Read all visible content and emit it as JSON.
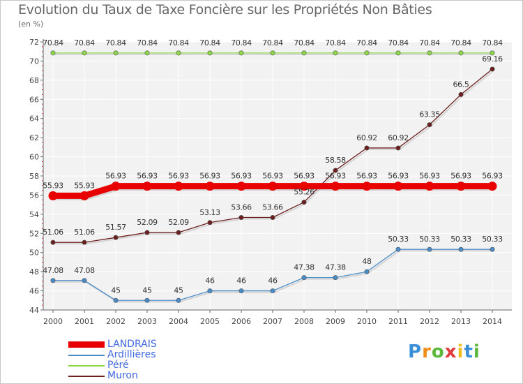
{
  "chart_data": {
    "type": "line",
    "title": "Evolution du Taux de Taxe Foncière sur les Propriétés Non Bâties",
    "ylabel": "(en %)",
    "xlabel": "",
    "ylim": [
      44,
      72
    ],
    "yticks": [
      44,
      46,
      48,
      50,
      52,
      54,
      56,
      58,
      60,
      62,
      64,
      66,
      68,
      70,
      72
    ],
    "x": [
      "2000",
      "2001",
      "2002",
      "2003",
      "2004",
      "2005",
      "2006",
      "2007",
      "2008",
      "2009",
      "2010",
      "2011",
      "2012",
      "2013",
      "2014"
    ],
    "series": [
      {
        "name": "LANDRAIS",
        "color": "#e80000",
        "values": [
          55.93,
          55.93,
          56.93,
          56.93,
          56.93,
          56.93,
          56.93,
          56.93,
          56.93,
          56.93,
          56.93,
          56.93,
          56.93,
          56.93,
          56.93
        ],
        "labels": [
          "55.93",
          "55.93",
          "56.93",
          "56.93",
          "56.93",
          "56.93",
          "56.93",
          "56.93",
          "56.93",
          "56.93",
          "56.93",
          "56.93",
          "56.93",
          "56.93",
          "56.93"
        ]
      },
      {
        "name": "Ardillières",
        "color": "#4a8cc8",
        "values": [
          47.08,
          47.08,
          45,
          45,
          45,
          46,
          46,
          46,
          47.38,
          47.38,
          48,
          50.33,
          50.33,
          50.33,
          50.33
        ],
        "labels": [
          "47.08",
          "47.08",
          "45",
          "45",
          "45",
          "46",
          "46",
          "46",
          "47.38",
          "47.38",
          "48",
          "50.33",
          "50.33",
          "50.33",
          "50.33"
        ]
      },
      {
        "name": "Péré",
        "color": "#8fd84a",
        "values": [
          70.84,
          70.84,
          70.84,
          70.84,
          70.84,
          70.84,
          70.84,
          70.84,
          70.84,
          70.84,
          70.84,
          70.84,
          70.84,
          70.84,
          70.84
        ],
        "labels": [
          "70.84",
          "70.84",
          "70.84",
          "70.84",
          "70.84",
          "70.84",
          "70.84",
          "70.84",
          "70.84",
          "70.84",
          "70.84",
          "70.84",
          "70.84",
          "70.84",
          "70.84"
        ]
      },
      {
        "name": "Muron",
        "color": "#6b1e1e",
        "values": [
          51.06,
          51.06,
          51.57,
          52.09,
          52.09,
          53.13,
          53.66,
          53.66,
          55.26,
          58.58,
          60.92,
          60.92,
          63.35,
          66.5,
          69.16
        ],
        "labels": [
          "51.06",
          "51.06",
          "51.57",
          "52.09",
          "52.09",
          "53.13",
          "53.66",
          "53.66",
          "55.26",
          "58.58",
          "60.92",
          "60.92",
          "63.35",
          "66.5",
          "69.16"
        ]
      }
    ]
  },
  "logo": {
    "letters": [
      "P",
      "r",
      "o",
      "x",
      "i",
      "t",
      "i"
    ],
    "colors": [
      "#3a8fd8",
      "#f08c1a",
      "#5cb83a",
      "#e23b3b",
      "#f0c020",
      "#3a8fd8",
      "#5cb83a"
    ]
  }
}
